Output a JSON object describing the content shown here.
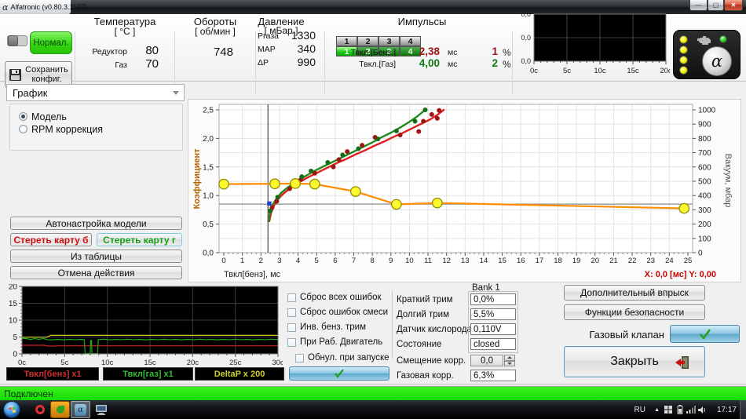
{
  "window": {
    "title": "Alfatronic (v0.80.3.1127)"
  },
  "header": {
    "normal_button": "Нормал.",
    "save_line1": "Сохранить",
    "save_line2": "конфиг.",
    "temperature": {
      "title": "Температура",
      "unit": "[ °C ]",
      "rows": [
        {
          "label": "Редуктор",
          "value": "80"
        },
        {
          "label": "Газ",
          "value": "70"
        }
      ]
    },
    "rpm": {
      "title": "Обороты",
      "unit": "[ об/мин ]",
      "value": "748"
    },
    "pressure": {
      "title": "Давление",
      "unit": "[ мБар ]",
      "rows": [
        {
          "label": "Pгаза",
          "value": "1330"
        },
        {
          "label": "MAP",
          "value": "340"
        },
        {
          "label": "ΔP",
          "value": "990"
        }
      ]
    },
    "impulses": {
      "title": "Импульсы",
      "cyl_top": [
        "1",
        "2",
        "3",
        "4"
      ],
      "cyl_bottom": [
        "1",
        "2",
        "3",
        "4"
      ],
      "rows": [
        {
          "label": "Твкл.[Бенз.]",
          "value": "2,38",
          "unit": "мс",
          "percent": "1",
          "psign": "%"
        },
        {
          "label": "Твкл.[Газ]",
          "value": "4,00",
          "unit": "мс",
          "percent": "2",
          "psign": "%"
        }
      ]
    }
  },
  "left_panel": {
    "view_select": "График",
    "radio_model": "Модель",
    "radio_rpm": "RPM коррекция",
    "btn_autotune": "Автонастройка модели",
    "btn_erase_petrol": "Стереть карту б",
    "btn_erase_gas": "Стереть карту г",
    "btn_from_table": "Из таблицы",
    "btn_undo": "Отмена действия"
  },
  "bottom": {
    "legend": [
      "Твкл[бенз] x1",
      "Твкл[газ] x1",
      "DeltaP x 200"
    ],
    "checkboxes": [
      "Сброс всех ошибок",
      "Сброс ошибок смеси",
      "Инв. бенз. трим",
      "При Раб. Двигатель",
      "Обнул. при запуске"
    ],
    "bank_label": "Bank 1",
    "fields": [
      {
        "label": "Краткий трим",
        "value": "0,0%"
      },
      {
        "label": "Долгий трим",
        "value": "5,5%"
      },
      {
        "label": "Датчик кислорода",
        "value": "0,110V"
      },
      {
        "label": "Состояние",
        "value": "closed"
      }
    ],
    "offset_label": "Смещение корр.",
    "offset_value": "0,0",
    "gas_corr_label": "Газовая корр.",
    "gas_corr_value": "6,3%",
    "btn_extra_injection": "Дополнительный впрыск",
    "btn_safety": "Функции безопасности",
    "gas_valve_label": "Газовый клапан",
    "btn_close": "Закрыть"
  },
  "status": {
    "text": "Подключен"
  },
  "taskbar": {
    "language": "RU",
    "time": "17:17"
  },
  "chart_data": [
    {
      "id": "main",
      "type": "line",
      "xlabel": "Твкл[бенз], мс",
      "ylabel_left": "Коэффициент",
      "ylabel_right": "Вакуум, мбар",
      "readout": "X: 0,0 [мс] Y: 0,00",
      "xlim": [
        0,
        25
      ],
      "ylim_left": [
        0,
        2.5
      ],
      "ylim_right": [
        0,
        1000
      ],
      "x_tick_step": 1,
      "y_left_step": 0.5,
      "y_left_minor": 0.25,
      "y_right_step": 100,
      "grid": true,
      "cursor": {
        "x_ms": 2.38,
        "y_mbar": 340
      },
      "series": [
        {
          "name": "petrol-model",
          "type": "line",
          "axis": "left",
          "color": "#dd2020",
          "width": 2.4,
          "points": [
            [
              2.45,
              0.55
            ],
            [
              2.55,
              0.7
            ],
            [
              2.7,
              0.82
            ],
            [
              2.9,
              0.93
            ],
            [
              3.2,
              1.03
            ],
            [
              3.5,
              1.11
            ],
            [
              3.8,
              1.18
            ],
            [
              4.1,
              1.24
            ],
            [
              4.6,
              1.33
            ],
            [
              5.1,
              1.41
            ],
            [
              5.6,
              1.49
            ],
            [
              6.1,
              1.57
            ],
            [
              6.6,
              1.64
            ],
            [
              7.1,
              1.72
            ],
            [
              7.6,
              1.79
            ],
            [
              8.1,
              1.87
            ],
            [
              8.6,
              1.94
            ],
            [
              9.1,
              2.02
            ],
            [
              9.6,
              2.09
            ],
            [
              10.1,
              2.17
            ],
            [
              10.6,
              2.25
            ],
            [
              11.1,
              2.33
            ],
            [
              11.5,
              2.41
            ],
            [
              11.85,
              2.5
            ]
          ]
        },
        {
          "name": "gas-model",
          "type": "line",
          "axis": "left",
          "color": "#1f8b1f",
          "width": 2.4,
          "points": [
            [
              2.4,
              0.55
            ],
            [
              2.5,
              0.72
            ],
            [
              2.65,
              0.85
            ],
            [
              2.85,
              0.95
            ],
            [
              3.1,
              1.05
            ],
            [
              3.4,
              1.13
            ],
            [
              3.7,
              1.2
            ],
            [
              4.0,
              1.26
            ],
            [
              4.5,
              1.36
            ],
            [
              5.0,
              1.45
            ],
            [
              5.5,
              1.53
            ],
            [
              6.0,
              1.61
            ],
            [
              6.5,
              1.69
            ],
            [
              7.0,
              1.77
            ],
            [
              7.5,
              1.85
            ],
            [
              8.0,
              1.93
            ],
            [
              8.5,
              2.02
            ],
            [
              9.0,
              2.1
            ],
            [
              9.5,
              2.19
            ],
            [
              10.0,
              2.29
            ],
            [
              10.4,
              2.38
            ],
            [
              10.85,
              2.5
            ]
          ]
        },
        {
          "name": "petrol-points",
          "type": "scatter",
          "axis": "left",
          "color": "#9e1515",
          "points": [
            [
              2.6,
              0.79
            ],
            [
              2.85,
              0.9
            ],
            [
              3.55,
              1.12
            ],
            [
              4.15,
              1.28
            ],
            [
              4.9,
              1.39
            ],
            [
              5.9,
              1.5
            ],
            [
              6.2,
              1.63
            ],
            [
              6.65,
              1.77
            ],
            [
              7.45,
              1.88
            ],
            [
              8.15,
              2.02
            ],
            [
              9.5,
              2.06
            ],
            [
              10.5,
              2.12
            ],
            [
              10.75,
              2.3
            ],
            [
              11.2,
              2.42
            ],
            [
              11.5,
              2.35
            ],
            [
              11.6,
              2.49
            ]
          ]
        },
        {
          "name": "gas-points",
          "type": "scatter",
          "axis": "left",
          "color": "#156e15",
          "points": [
            [
              2.5,
              0.73
            ],
            [
              2.9,
              0.97
            ],
            [
              4.2,
              1.33
            ],
            [
              4.7,
              1.43
            ],
            [
              5.6,
              1.58
            ],
            [
              6.4,
              1.71
            ],
            [
              7.25,
              1.82
            ],
            [
              8.3,
              1.99
            ],
            [
              9.3,
              2.13
            ],
            [
              10.3,
              2.3
            ],
            [
              10.85,
              2.5
            ]
          ]
        },
        {
          "name": "vacuum",
          "type": "line",
          "axis": "right",
          "color": "#ff8c00",
          "width": 2.2,
          "marker": "circle",
          "marker_fill": "#fff72e",
          "marker_stroke": "#8f8f00",
          "points": [
            [
              0,
              480
            ],
            [
              2.75,
              482
            ],
            [
              3.85,
              484
            ],
            [
              4.9,
              480
            ],
            [
              7.1,
              428
            ],
            [
              9.3,
              338
            ],
            [
              11.5,
              348
            ],
            [
              24.8,
              310
            ]
          ]
        },
        {
          "name": "operating-point",
          "type": "point",
          "axis": "left",
          "color": "#2040c8",
          "points": [
            [
              2.45,
              0.86
            ]
          ]
        }
      ]
    },
    {
      "id": "trend",
      "type": "line",
      "y_labels": [
        "0,0",
        "0,0",
        "0,0"
      ],
      "x_tick_labels": [
        "0c",
        "5c",
        "10c",
        "15c",
        "20c"
      ],
      "x_units": 20,
      "series": []
    },
    {
      "id": "scope",
      "type": "line",
      "ylim": [
        0,
        20
      ],
      "y_ticks": [
        0,
        5,
        10,
        15,
        20
      ],
      "x_tick_labels": [
        "0c",
        "5c",
        "10c",
        "15c",
        "20c",
        "25c",
        "30c"
      ],
      "x_units": 30,
      "series": [
        {
          "name": "petrol-inj-time",
          "color": "#cc2222",
          "points": [
            [
              0,
              2.55
            ],
            [
              2.6,
              2.55
            ],
            [
              3.0,
              2.35
            ],
            [
              3.6,
              2.3
            ],
            [
              4.2,
              2.4
            ],
            [
              30,
              2.4
            ]
          ]
        },
        {
          "name": "gas-inj-time",
          "color": "#22aa22",
          "points": [
            [
              0,
              4.6
            ],
            [
              0.6,
              4.5
            ],
            [
              1.0,
              4.25
            ],
            [
              1.5,
              4.55
            ],
            [
              2.0,
              4.3
            ],
            [
              2.5,
              4.55
            ],
            [
              3.0,
              4.2
            ],
            [
              3.5,
              4.15
            ],
            [
              4.2,
              4.3
            ],
            [
              4.9,
              4.15
            ],
            [
              5.6,
              4.3
            ],
            [
              6.3,
              4.2
            ],
            [
              7.0,
              4.3
            ],
            [
              7.3,
              4.2
            ],
            [
              7.4,
              0.1
            ],
            [
              8.0,
              0.1
            ],
            [
              8.05,
              4.0
            ],
            [
              8.15,
              4.0
            ],
            [
              8.2,
              0.1
            ],
            [
              8.85,
              0.1
            ],
            [
              8.95,
              4.25
            ],
            [
              9.6,
              4.35
            ],
            [
              10.3,
              4.15
            ],
            [
              11.0,
              4.3
            ],
            [
              11.7,
              4.2
            ],
            [
              12.4,
              4.35
            ],
            [
              13.1,
              4.2
            ],
            [
              13.8,
              4.3
            ],
            [
              14.5,
              4.15
            ],
            [
              15.2,
              4.3
            ],
            [
              15.9,
              4.2
            ],
            [
              16.6,
              4.35
            ],
            [
              17.3,
              4.2
            ],
            [
              18.0,
              4.3
            ],
            [
              18.7,
              4.15
            ],
            [
              19.4,
              4.3
            ],
            [
              20.1,
              4.2
            ],
            [
              20.8,
              4.35
            ],
            [
              21.5,
              4.2
            ],
            [
              22.2,
              4.3
            ],
            [
              22.9,
              4.15
            ],
            [
              23.6,
              4.3
            ],
            [
              24.3,
              4.2
            ],
            [
              25.0,
              4.35
            ],
            [
              25.7,
              4.2
            ],
            [
              26.4,
              4.3
            ],
            [
              27.1,
              4.15
            ],
            [
              27.8,
              4.3
            ],
            [
              28.5,
              4.2
            ],
            [
              29.2,
              4.35
            ],
            [
              30,
              4.25
            ]
          ]
        },
        {
          "name": "deltap-x200",
          "color": "#cccc22",
          "points": [
            [
              0,
              4.95
            ],
            [
              2.9,
              4.95
            ],
            [
              3.1,
              5.2
            ],
            [
              3.4,
              5.5
            ],
            [
              30,
              5.5
            ]
          ]
        }
      ]
    }
  ]
}
